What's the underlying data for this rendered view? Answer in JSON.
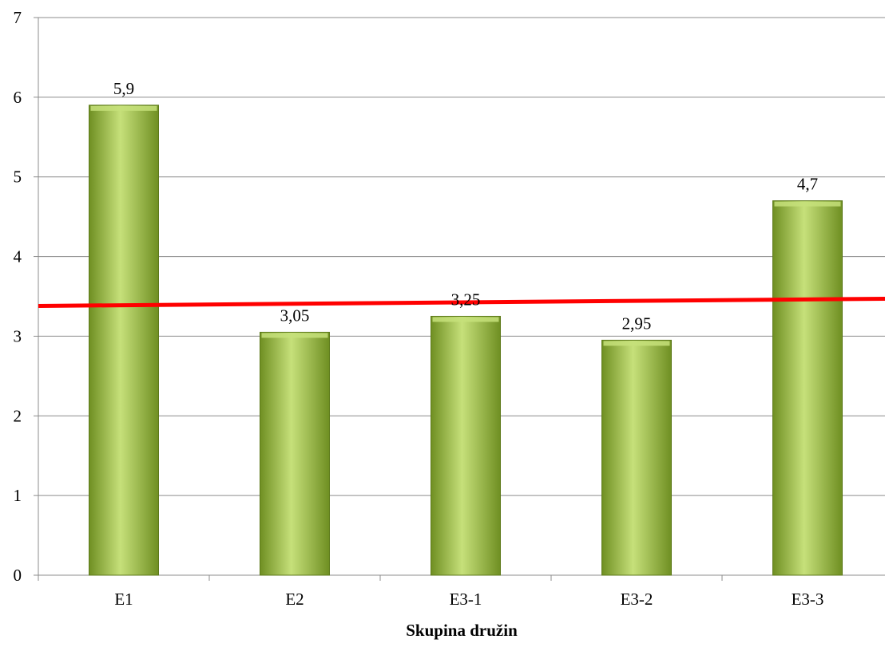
{
  "chart_data": {
    "type": "bar",
    "title": "",
    "xlabel": "Skupina družin",
    "ylabel": "",
    "categories": [
      "E1",
      "E2",
      "E3-1",
      "E3-2",
      "E3-3"
    ],
    "values": [
      5.9,
      3.05,
      3.25,
      2.95,
      4.7
    ],
    "data_labels": [
      "5,9",
      "3,05",
      "3,25",
      "2,95",
      "4,7"
    ],
    "ylim": [
      0,
      7
    ],
    "yticks": [
      "0",
      "1",
      "2",
      "3",
      "4",
      "5",
      "6",
      "7"
    ],
    "grid": true,
    "legend": "none",
    "trendline": {
      "type": "linear",
      "start_value": 3.38,
      "end_value": 3.47
    },
    "colors": {
      "bar_fill_light": "#c6e07a",
      "bar_fill_mid": "#9bc03a",
      "bar_fill_dark": "#6f8f22",
      "bar_stroke": "#5d7a1a",
      "trendline": "#ff0000",
      "grid": "#8c8c8c",
      "axis": "#8c8c8c"
    }
  }
}
